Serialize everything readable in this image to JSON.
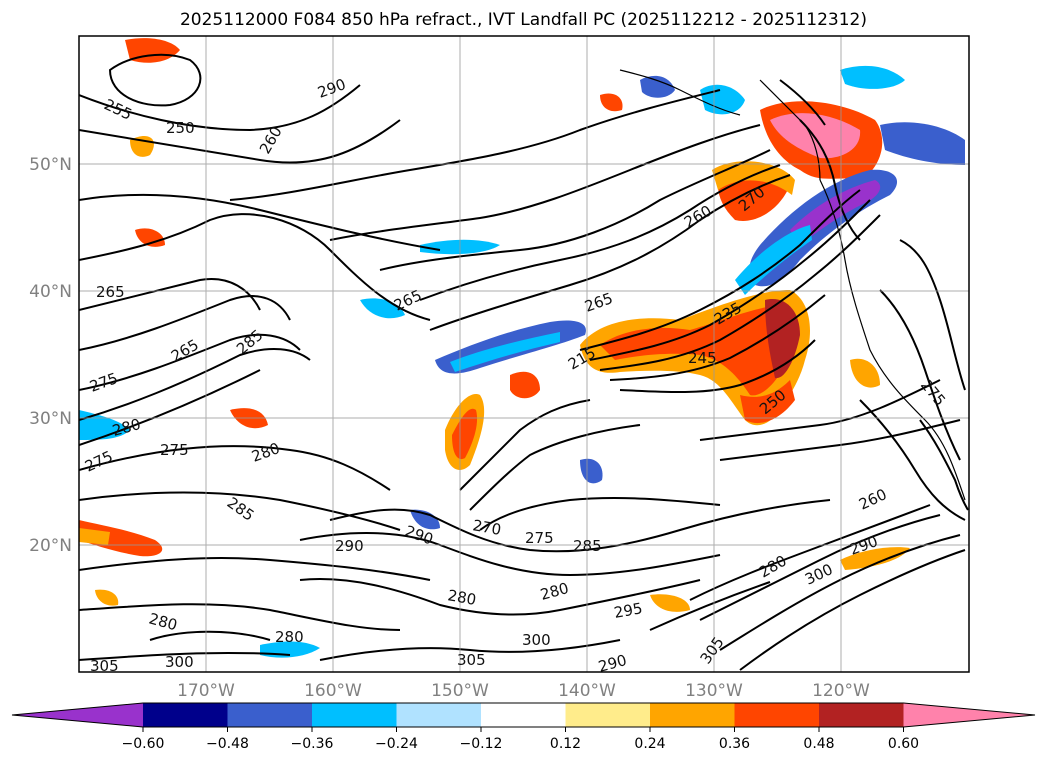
{
  "title": "2025112000 F084 850 hPa refract., IVT Landfall PC (2025112212 - 2025112312)",
  "lat_ticks": [
    "50°N",
    "40°N",
    "30°N",
    "20°N"
  ],
  "lon_ticks": [
    "170°W",
    "160°W",
    "150°W",
    "140°W",
    "130°W",
    "120°W"
  ],
  "contour_labels": [
    "255",
    "250",
    "260",
    "290",
    "265",
    "285",
    "265",
    "275",
    "280",
    "275",
    "275",
    "280",
    "285",
    "290",
    "290",
    "270",
    "275",
    "285",
    "280",
    "280",
    "280",
    "295",
    "300",
    "305",
    "305",
    "300",
    "260",
    "270",
    "265",
    "235",
    "215",
    "245",
    "250",
    "260",
    "280",
    "300",
    "290",
    "280",
    "290",
    "305",
    "275",
    "265"
  ],
  "colorbar": {
    "ticks": [
      "−0.60",
      "−0.48",
      "−0.36",
      "−0.24",
      "−0.12",
      "0.12",
      "0.24",
      "0.36",
      "0.48",
      "0.60"
    ],
    "colors": [
      "#9932cc",
      "#00008b",
      "#3a5fcd",
      "#00bfff",
      "#b0e2ff",
      "#ffffff",
      "#ffec8b",
      "#ffa500",
      "#ff4500",
      "#b22222",
      "#ff82ab"
    ]
  },
  "chart_data": {
    "type": "heatmap",
    "title": "2025112000 F084 850 hPa refract., IVT Landfall PC (2025112212 - 2025112312)",
    "lat_ticks_deg": [
      50,
      40,
      30,
      20
    ],
    "lon_ticks_deg": [
      -170,
      -160,
      -150,
      -140,
      -130,
      -120
    ],
    "lon_range_deg": [
      -180,
      -110
    ],
    "lat_range_deg": [
      10,
      60
    ],
    "fill_levels": [
      -0.6,
      -0.48,
      -0.36,
      -0.24,
      -0.12,
      0.12,
      0.24,
      0.36,
      0.48,
      0.6
    ],
    "contour_variable_labels": [
      215,
      235,
      245,
      250,
      255,
      260,
      265,
      270,
      275,
      280,
      285,
      290,
      295,
      300,
      305
    ],
    "colorbar_extend": "both"
  }
}
